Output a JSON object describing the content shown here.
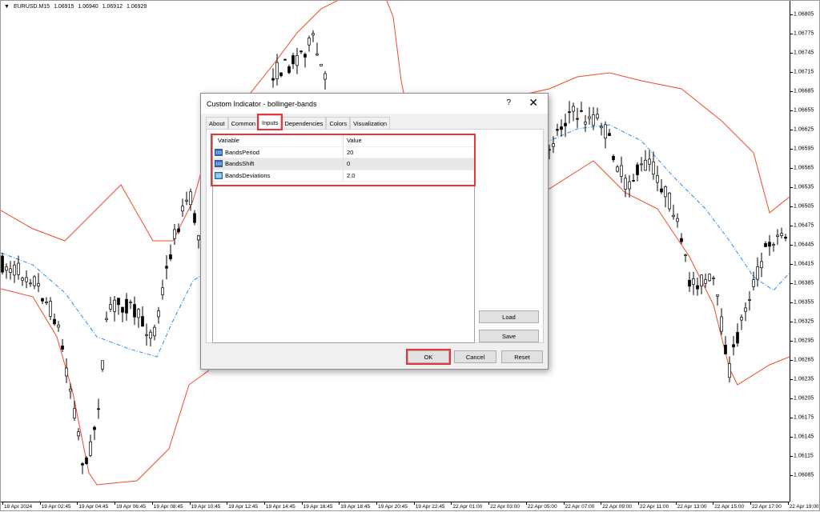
{
  "chart": {
    "symbol": "EURUSD.M15",
    "open": "1.06915",
    "high": "1.06940",
    "low": "1.06912",
    "close": "1.06929",
    "y_labels": [
      "1.06805",
      "1.06775",
      "1.06745",
      "1.06715",
      "1.06685",
      "1.06655",
      "1.06625",
      "1.06595",
      "1.06565",
      "1.06535",
      "1.06505",
      "1.06475",
      "1.06445",
      "1.06415",
      "1.06385",
      "1.06355",
      "1.06325",
      "1.06295",
      "1.06265",
      "1.06235",
      "1.06205",
      "1.06175",
      "1.06145",
      "1.06115",
      "1.06085"
    ],
    "x_labels": [
      "19 Apr 2024",
      "19 Apr 02:45",
      "19 Apr 04:45",
      "19 Apr 06:45",
      "19 Apr 08:45",
      "19 Apr 10:45",
      "19 Apr 12:45",
      "19 Apr 14:45",
      "19 Apr 16:45",
      "19 Apr 18:45",
      "19 Apr 20:45",
      "19 Apr 22:45",
      "22 Apr 01:00",
      "22 Apr 03:00",
      "22 Apr 05:00",
      "22 Apr 07:00",
      "22 Apr 09:00",
      "22 Apr 11:00",
      "22 Apr 13:00",
      "22 Apr 15:00",
      "22 Apr 17:00",
      "22 Apr 19:00"
    ],
    "colors": {
      "bands": "#f04a2a",
      "middle": "#2a8ae8",
      "candles": "#000000"
    }
  },
  "dialog": {
    "title": "Custom Indicator - bollinger-bands",
    "help": "?",
    "close": "✕",
    "tabs": [
      "About",
      "Common",
      "Inputs",
      "Dependencies",
      "Colors",
      "Visualization"
    ],
    "active_tab": "Inputs",
    "columns": {
      "variable": "Variable",
      "value": "Value"
    },
    "inputs": [
      {
        "icon": "123",
        "name": "BandsPeriod",
        "value": "20"
      },
      {
        "icon": "123",
        "name": "BandsShift",
        "value": "0"
      },
      {
        "icon": "1/2",
        "name": "BandsDeviations",
        "value": "2.0"
      }
    ],
    "buttons": {
      "load": "Load",
      "save": "Save",
      "ok": "OK",
      "cancel": "Cancel",
      "reset": "Reset"
    }
  }
}
